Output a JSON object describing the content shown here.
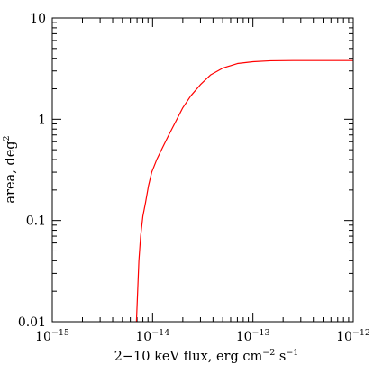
{
  "chart_data": {
    "type": "line",
    "xlabel": "2−10 keV flux, erg cm−2 s−1",
    "xlabel_parts": {
      "main": "2−10 keV flux, erg cm",
      "exp1": "−2",
      "mid": " s",
      "exp2": "−1"
    },
    "ylabel": "area, deg²",
    "ylabel_parts": {
      "main": "area, deg",
      "exp": "2"
    },
    "x_scale": "log",
    "y_scale": "log",
    "xlim": [
      1e-15,
      1e-12
    ],
    "ylim": [
      0.01,
      10
    ],
    "grid": false,
    "x_ticks": [
      {
        "value": 1e-15,
        "base": "10",
        "exp": "−15"
      },
      {
        "value": 1e-14,
        "base": "10",
        "exp": "−14"
      },
      {
        "value": 1e-13,
        "base": "10",
        "exp": "−13"
      },
      {
        "value": 1e-12,
        "base": "10",
        "exp": "−12"
      }
    ],
    "y_ticks": [
      {
        "value": 0.01,
        "label": "0.01"
      },
      {
        "value": 0.1,
        "label": "0.1"
      },
      {
        "value": 1,
        "label": "1"
      },
      {
        "value": 10,
        "label": "10"
      }
    ],
    "series": [
      {
        "color": "#ff0000",
        "x": [
          6.9e-15,
          7.1e-15,
          7.3e-15,
          7.6e-15,
          8e-15,
          8.5e-15,
          9.1e-15,
          9.8e-15,
          1.1e-14,
          1.25e-14,
          1.45e-14,
          1.7e-14,
          2e-14,
          2.4e-14,
          3e-14,
          3.8e-14,
          5e-14,
          7e-14,
          1e-13,
          1.5e-13,
          2.5e-13,
          5e-13,
          1e-12
        ],
        "y": [
          0.01,
          0.02,
          0.04,
          0.07,
          0.11,
          0.15,
          0.22,
          0.3,
          0.4,
          0.52,
          0.7,
          0.95,
          1.3,
          1.7,
          2.2,
          2.75,
          3.2,
          3.55,
          3.7,
          3.78,
          3.8,
          3.8,
          3.8
        ]
      }
    ]
  }
}
